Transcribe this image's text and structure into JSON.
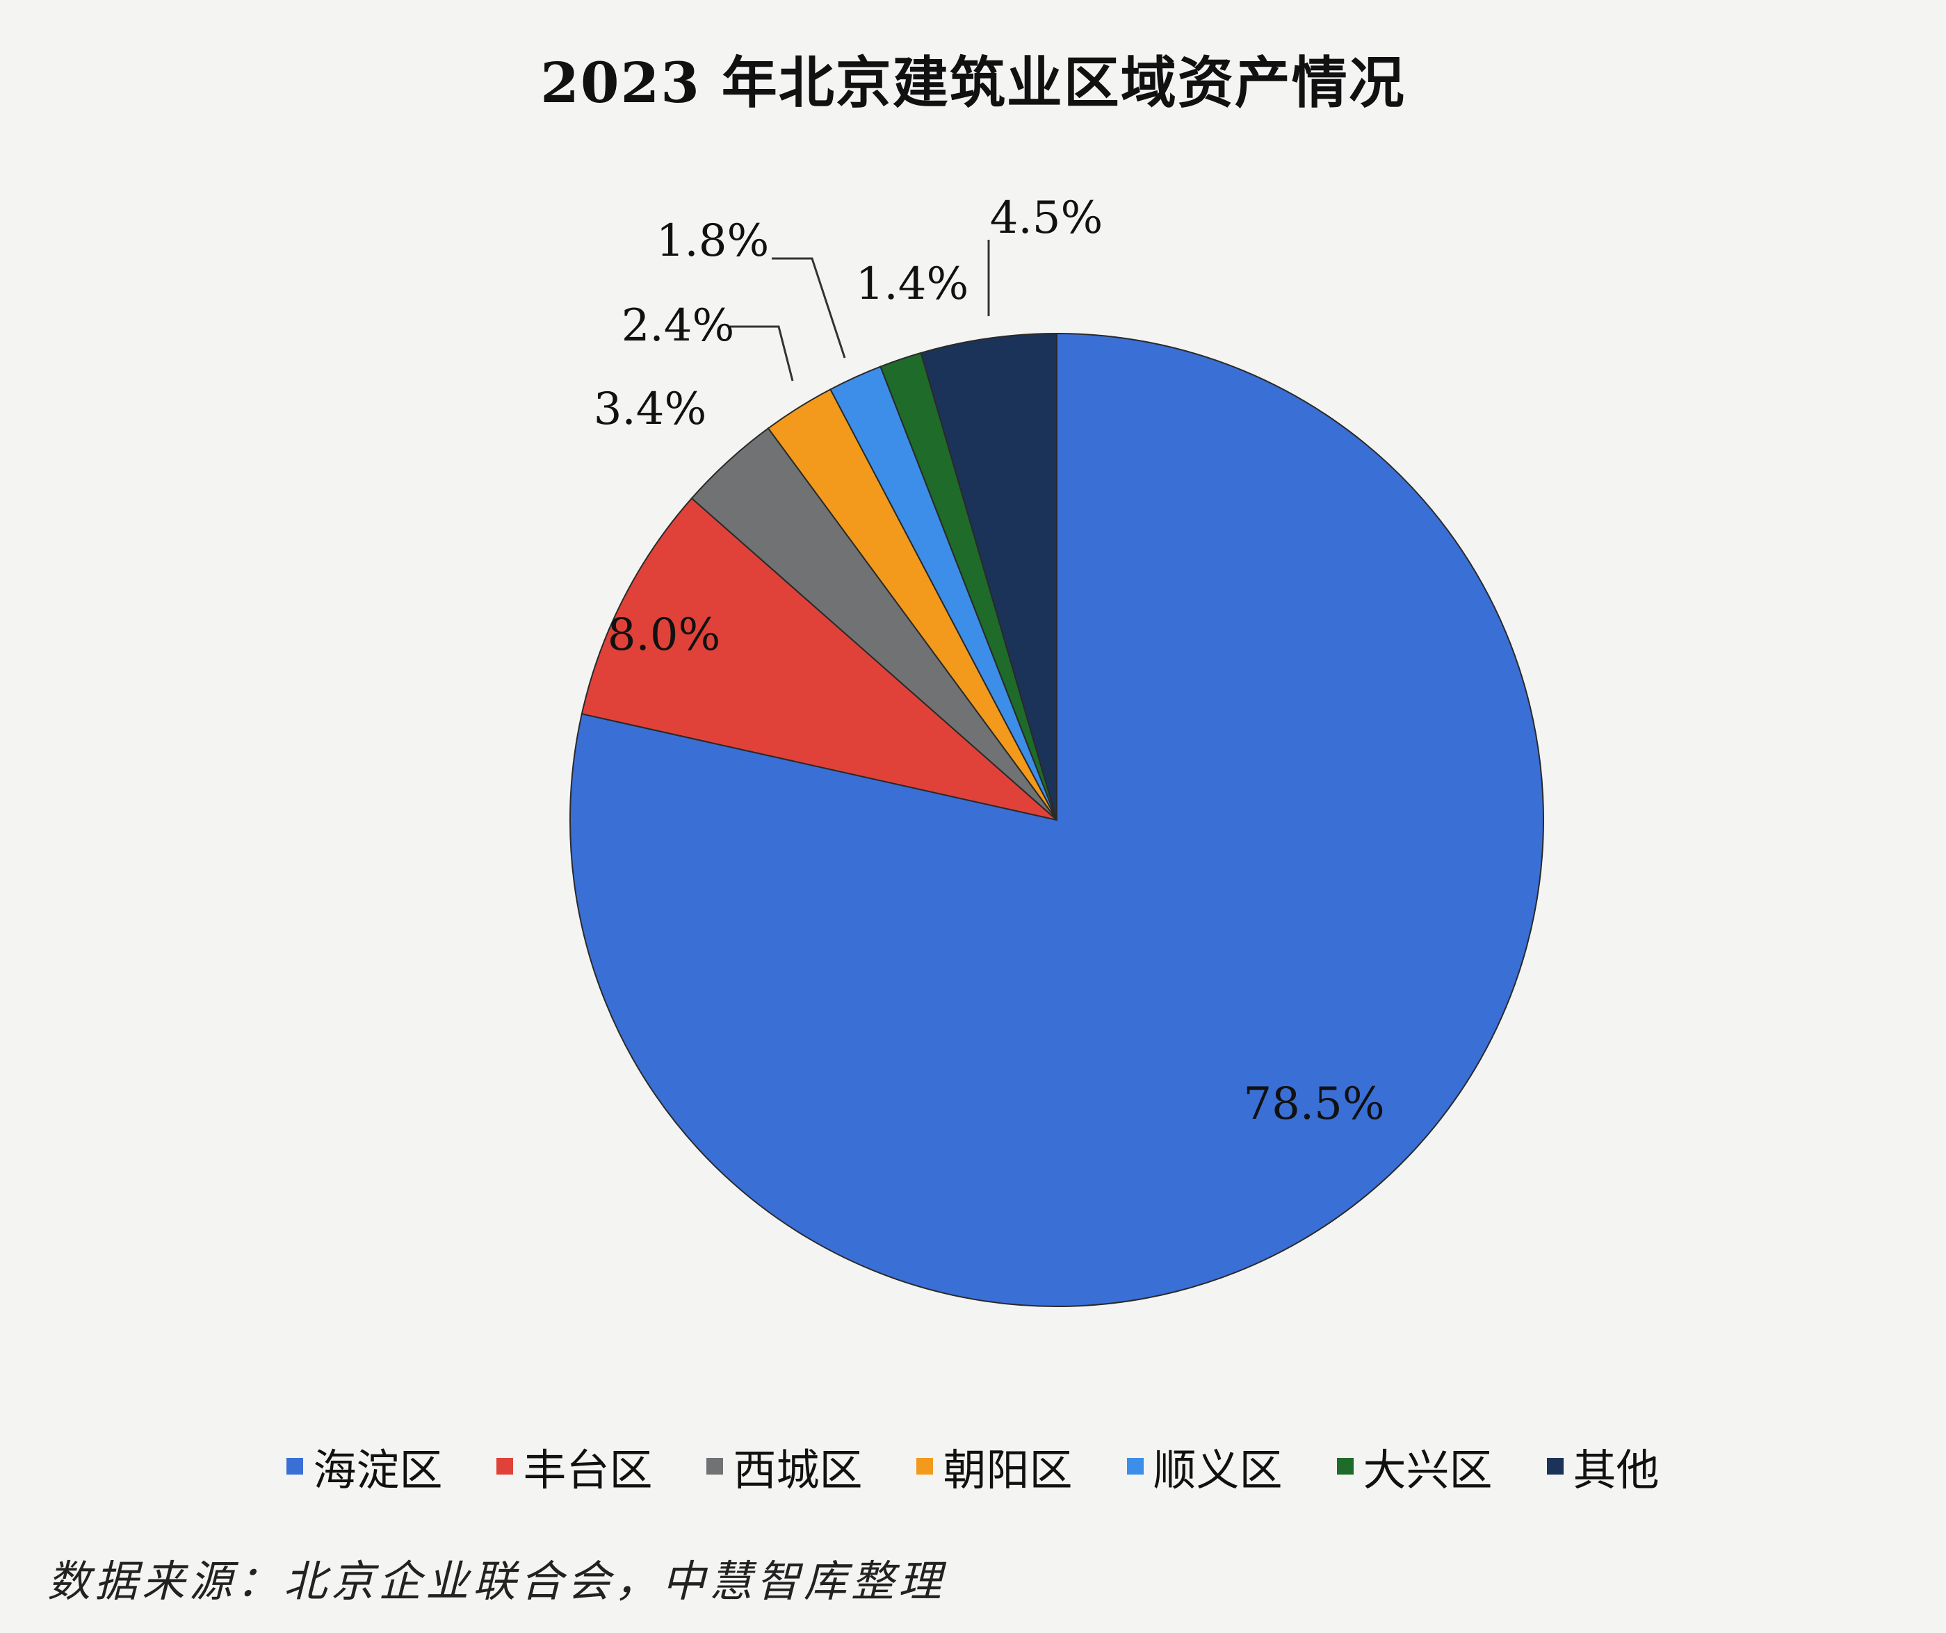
{
  "chart_data": {
    "type": "pie",
    "title": "2023 年北京建筑业区域资产情况",
    "categories": [
      "海淀区",
      "丰台区",
      "西城区",
      "朝阳区",
      "顺义区",
      "大兴区",
      "其他"
    ],
    "values": [
      78.5,
      8.0,
      3.4,
      2.4,
      1.8,
      1.4,
      4.5
    ],
    "labels": [
      "78.5%",
      "8.0%",
      "3.4%",
      "2.4%",
      "1.8%",
      "1.4%",
      "4.5%"
    ],
    "colors": [
      "#3a6fd6",
      "#e0423a",
      "#707273",
      "#f39a1c",
      "#3d8ee8",
      "#1f6b2a",
      "#1b3358"
    ],
    "start": "12 o'clock",
    "direction": "clockwise",
    "legend_position": "bottom"
  },
  "source_note": "数据来源：北京企业联合会，中慧智库整理"
}
